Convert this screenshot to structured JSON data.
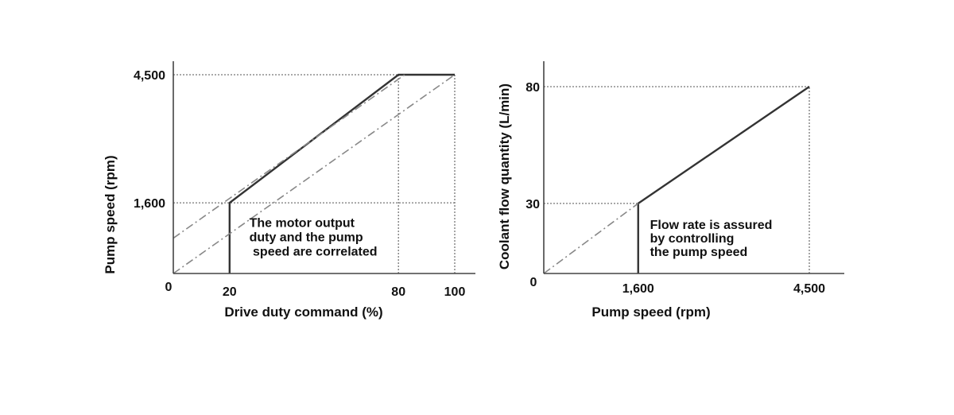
{
  "chart_data": [
    {
      "type": "line",
      "xlabel": "Drive duty command (%)",
      "ylabel": "Pump speed (rpm)",
      "xlim": [
        0,
        100
      ],
      "ylim": [
        0,
        4500
      ],
      "x_ticks": [
        {
          "value": 0,
          "label": "0"
        },
        {
          "value": 20,
          "label": "20"
        },
        {
          "value": 80,
          "label": "80"
        },
        {
          "value": 100,
          "label": "100"
        }
      ],
      "y_ticks": [
        {
          "value": 1600,
          "label": "1,600"
        },
        {
          "value": 4500,
          "label": "4,500"
        }
      ],
      "series": [
        {
          "style": "solid",
          "color": "#333333",
          "x": [
            20,
            20,
            80,
            100
          ],
          "y": [
            0,
            1600,
            4500,
            4500
          ]
        },
        {
          "style": "dashdot",
          "color": "#888888",
          "x": [
            0,
            100
          ],
          "y": [
            800,
            5300
          ]
        },
        {
          "style": "dashdot",
          "color": "#888888",
          "x": [
            0,
            100
          ],
          "y": [
            0,
            4500
          ]
        }
      ],
      "reference_lines": [
        {
          "x": [
            0,
            100
          ],
          "y": [
            1600,
            1600
          ]
        },
        {
          "x": [
            0,
            100
          ],
          "y": [
            4500,
            4500
          ]
        },
        {
          "x": [
            80,
            80
          ],
          "y": [
            0,
            4500
          ]
        },
        {
          "x": [
            100,
            100
          ],
          "y": [
            0,
            4500
          ]
        }
      ],
      "annotation": {
        "lines": [
          "The motor output",
          "duty and the pump",
          " speed are correlated"
        ],
        "x": 27,
        "y": 1050
      },
      "grid": false,
      "legend": "none"
    },
    {
      "type": "line",
      "xlabel": "Pump speed (rpm)",
      "ylabel": "Coolant flow quantity (L/min)",
      "xlim": [
        0,
        4500
      ],
      "ylim": [
        0,
        80
      ],
      "x_ticks": [
        {
          "value": 1600,
          "label": "1,600"
        },
        {
          "value": 4500,
          "label": "4,500"
        }
      ],
      "y_ticks": [
        {
          "value": 0,
          "label": "0"
        },
        {
          "value": 30,
          "label": "30"
        },
        {
          "value": 80,
          "label": "80"
        }
      ],
      "series": [
        {
          "style": "solid",
          "color": "#333333",
          "x": [
            1600,
            1600,
            4500
          ],
          "y": [
            0,
            30,
            80
          ]
        },
        {
          "style": "dashdot",
          "color": "#888888",
          "x": [
            0,
            1600
          ],
          "y": [
            0,
            30
          ]
        }
      ],
      "reference_lines": [
        {
          "x": [
            0,
            1600
          ],
          "y": [
            30,
            30
          ]
        },
        {
          "x": [
            0,
            4500
          ],
          "y": [
            80,
            80
          ]
        },
        {
          "x": [
            4500,
            4500
          ],
          "y": [
            0,
            80
          ]
        }
      ],
      "annotation": {
        "lines": [
          "Flow rate is assured",
          "by controlling",
          "the pump speed"
        ],
        "x": 1800,
        "y": 19
      },
      "grid": false,
      "legend": "none"
    }
  ]
}
